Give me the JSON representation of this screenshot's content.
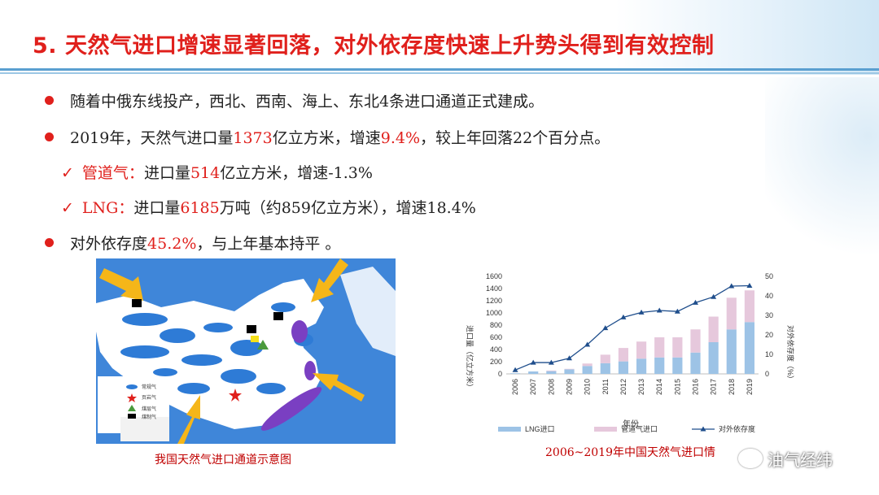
{
  "title": "5. 天然气进口增速显著回落，对外依存度快速上升势头得到有效控制",
  "bullets": {
    "b1": "随着中俄东线投产，西北、西南、海上、东北4条进口通道正式建成。",
    "b2_pre": "2019年，天然气进口量",
    "b2_v1": "1373",
    "b2_mid": "亿立方米，增速",
    "b2_v2": "9.4%",
    "b2_post": "，较上年回落22个百分点。",
    "c1_label": "管道气：",
    "c1_pre": "进口量",
    "c1_v": "514",
    "c1_post": "亿立方米，增速-1.3%",
    "c2_label": "LNG：",
    "c2_pre": "进口量",
    "c2_v": "6185",
    "c2_post": "万吨（约859亿立方米），增速18.4%",
    "b3_pre": "对外依存度",
    "b3_v": "45.2%",
    "b3_post": "，与上年基本持平 。",
    "check_mark": "✓"
  },
  "map": {
    "caption": "我国天然气进口通道示意图",
    "legend": [
      "常规气",
      "页岩气",
      "煤层气",
      "煤制气"
    ]
  },
  "chart_caption": "2006~2019年中国天然气进口情",
  "watermark": "油气经纬",
  "colors": {
    "accent": "#e0201c",
    "lng": "#9dc3e6",
    "pipe": "#e6c8dc",
    "line": "#1f4e8c"
  },
  "chart_data": {
    "type": "bar",
    "stacked": true,
    "categories": [
      "2006",
      "2007",
      "2008",
      "2009",
      "2010",
      "2011",
      "2012",
      "2013",
      "2014",
      "2015",
      "2016",
      "2017",
      "2018",
      "2019"
    ],
    "series": [
      {
        "name": "LNG进口",
        "axis": "left",
        "values": [
          10,
          40,
          45,
          75,
          130,
          175,
          205,
          250,
          270,
          270,
          350,
          520,
          730,
          850
        ]
      },
      {
        "name": "管道气进口",
        "axis": "left",
        "values": [
          0,
          0,
          10,
          8,
          40,
          140,
          220,
          280,
          330,
          330,
          380,
          420,
          520,
          520
        ]
      },
      {
        "name": "对外依存度",
        "type": "line",
        "axis": "right",
        "values": [
          2,
          5.8,
          5.8,
          8,
          15,
          23.5,
          29,
          31.5,
          32.5,
          32,
          36.5,
          39.5,
          45,
          45.2
        ]
      }
    ],
    "xlabel": "年份",
    "ylabel": "进口量（亿立方米）",
    "y2label": "对外依存度（%）",
    "ylim": [
      0,
      1600
    ],
    "y2lim": [
      0,
      50
    ],
    "yticks": [
      "0",
      "200",
      "400",
      "600",
      "800",
      "1000",
      "1200",
      "1400",
      "1600"
    ],
    "y2ticks": [
      "0",
      "10",
      "20",
      "30",
      "40",
      "50"
    ],
    "legend_position": "bottom"
  }
}
